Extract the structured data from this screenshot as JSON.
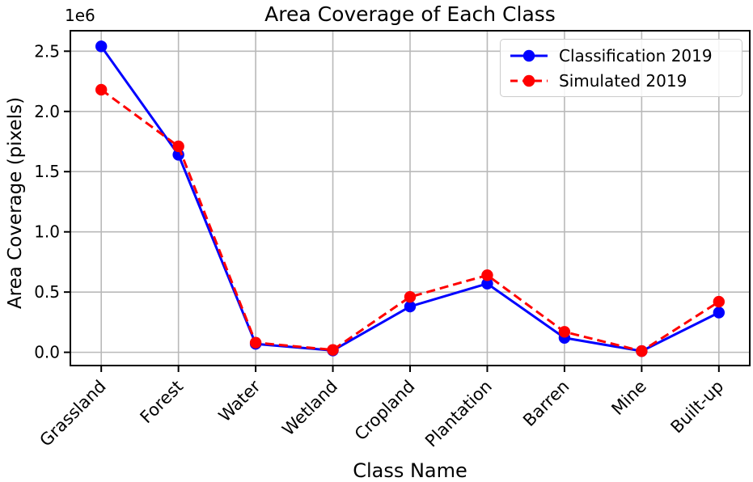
{
  "chart_data": {
    "type": "line",
    "title": "Area Coverage of Each Class",
    "xlabel": "Class Name",
    "ylabel": "Area Coverage (pixels)",
    "y_offset_label": "1e6",
    "categories": [
      "Grassland",
      "Forest",
      "Water",
      "Wetland",
      "Cropland",
      "Plantation",
      "Barren",
      "Mine",
      "Built-up"
    ],
    "series": [
      {
        "name": "Classification 2019",
        "color": "#0000ff",
        "linestyle": "solid",
        "marker": "circle",
        "values": [
          2540000,
          1640000,
          70000,
          15000,
          380000,
          570000,
          120000,
          10000,
          330000
        ]
      },
      {
        "name": "Simulated 2019",
        "color": "#ff0000",
        "linestyle": "dashed",
        "marker": "circle",
        "values": [
          2180000,
          1710000,
          80000,
          20000,
          460000,
          640000,
          170000,
          10000,
          420000
        ]
      }
    ],
    "yticks": {
      "values": [
        0,
        500000,
        1000000,
        1500000,
        2000000,
        2500000
      ],
      "labels": [
        "0.0",
        "0.5",
        "1.0",
        "1.5",
        "2.0",
        "2.5"
      ]
    },
    "xlim": [
      -0.4,
      8.4
    ],
    "ylim": [
      -110000,
      2670000
    ],
    "grid": true,
    "legend_position": "upper right",
    "colors": {
      "grid": "#b9b9b9",
      "axis": "#000000",
      "background": "#ffffff",
      "text": "#000000"
    }
  }
}
